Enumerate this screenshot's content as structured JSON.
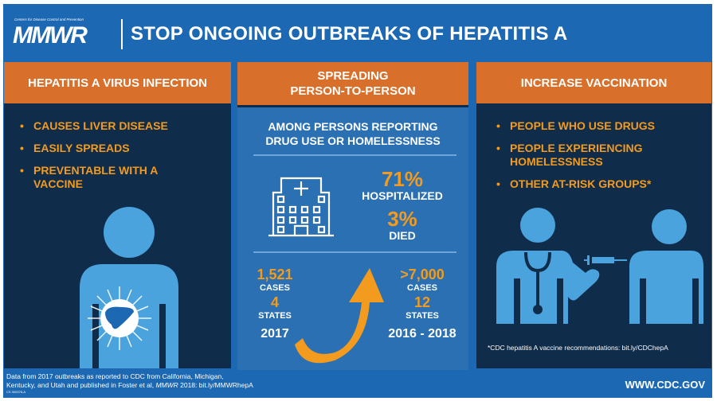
{
  "header": {
    "org": "Centers for Disease Control and Prevention",
    "logo": "MMWR",
    "title": "STOP ONGOING OUTBREAKS OF HEPATITIS A"
  },
  "left": {
    "heading": "HEPATITIS A VIRUS INFECTION",
    "bullets": [
      "CAUSES LIVER DISEASE",
      "EASILY SPREADS",
      "PREVENTABLE WITH A VACCINE"
    ],
    "icon": "person-with-liver-icon"
  },
  "middle": {
    "heading_line1": "SPREADING",
    "heading_line2": "PERSON-TO-PERSON",
    "subtitle_line1": "AMONG PERSONS REPORTING",
    "subtitle_line2": "DRUG USE OR HOMELESSNESS",
    "hospitalized_pct": "71%",
    "hospitalized_label": "HOSPITALIZED",
    "died_pct": "3%",
    "died_label": "DIED",
    "before": {
      "cases": "1,521",
      "cases_label": "CASES",
      "states": "4",
      "states_label": "STATES",
      "period": "2017"
    },
    "after": {
      "cases": ">7,000",
      "cases_label": "CASES",
      "states": "12",
      "states_label": "STATES",
      "period": "2016 - 2018"
    },
    "icons": [
      "hospital-icon",
      "up-arrow-icon"
    ]
  },
  "right": {
    "heading": "INCREASE VACCINATION",
    "bullets": [
      "PEOPLE WHO USE DRUGS",
      "PEOPLE EXPERIENCING HOMELESSNESS",
      "OTHER AT-RISK GROUPS*"
    ],
    "footnote": "*CDC hepatitis A vaccine recommendations: bit.ly/CDChepA",
    "icon": "doctor-vaccinating-person-icon"
  },
  "footer": {
    "source_line1": "Data from 2017 outbreaks as reported to CDC from California, Michigan,",
    "source_line2_a": "Kentucky, and Utah and published in Foster et al, ",
    "source_line2_b": "MMWR",
    "source_line2_c": " 2018: bit.ly/MMWRhepA",
    "code": "CS 300378-A",
    "url": "WWW.CDC.GOV"
  },
  "colors": {
    "blue": "#1c68b3",
    "navy": "#0f2c4a",
    "orange_header": "#d8702b",
    "orange_text": "#f39b1e",
    "icon_blue": "#4aa3dd"
  }
}
